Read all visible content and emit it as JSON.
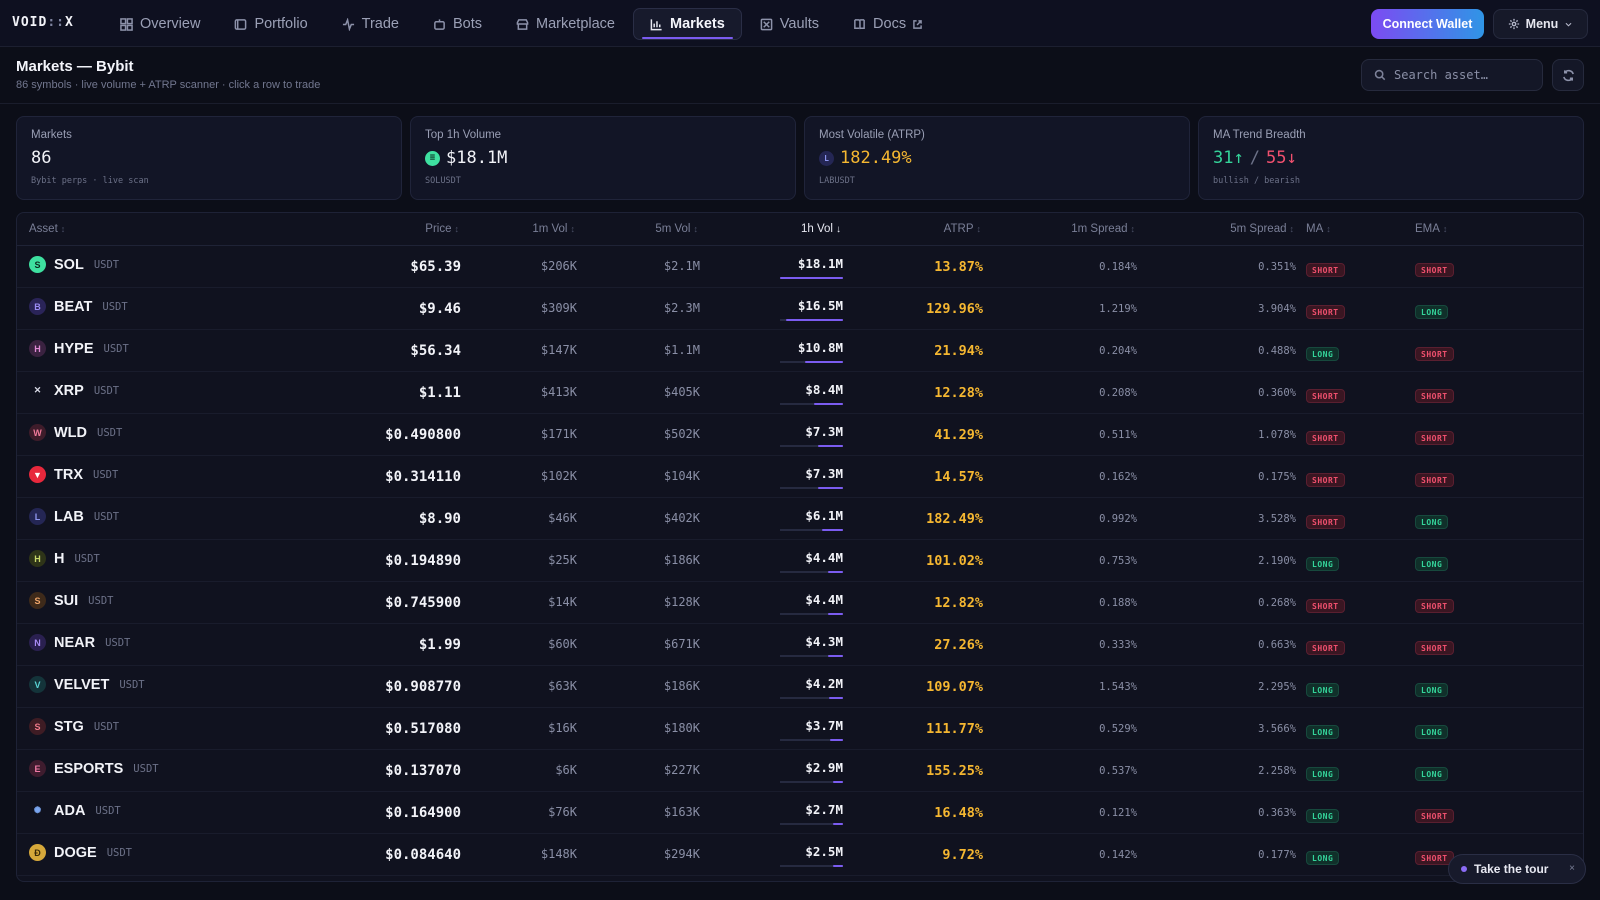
{
  "nav": {
    "logo_a": "VOID",
    "logo_sep": "::",
    "logo_b": "X",
    "tabs": [
      {
        "label": "Overview",
        "icon": "grid-icon"
      },
      {
        "label": "Portfolio",
        "icon": "wallet-icon"
      },
      {
        "label": "Trade",
        "icon": "activity-icon"
      },
      {
        "label": "Bots",
        "icon": "bot-icon"
      },
      {
        "label": "Marketplace",
        "icon": "store-icon"
      },
      {
        "label": "Markets",
        "icon": "bar-chart-icon",
        "active": true
      },
      {
        "label": "Vaults",
        "icon": "vault-icon"
      },
      {
        "label": "Docs",
        "icon": "book-icon",
        "external": true
      }
    ],
    "connect_label": "Connect Wallet",
    "menu_label": "Menu"
  },
  "header": {
    "title": "Markets — Bybit",
    "subtitle": "86 symbols · live volume + ATRP scanner · click a row to trade",
    "search_placeholder": "Search asset…"
  },
  "cards": [
    {
      "label": "Markets",
      "value": "86",
      "note": "Bybit perps · live scan"
    },
    {
      "label": "Top 1h Volume",
      "value": "$18.1M",
      "note": "SOLUSDT",
      "icon": "sol-icon"
    },
    {
      "label": "Most Volatile (ATRP)",
      "value": "182.49%",
      "note": "LABUSDT",
      "icon_letter": "L"
    },
    {
      "label": "MA Trend Breadth",
      "bull": "31↑",
      "slash": "/",
      "bear": "55↓",
      "note": "bullish / bearish"
    }
  ],
  "colors": {
    "accent": "#7b5cf0",
    "long": "#34d399",
    "short": "#f0506e",
    "atrp": "#f5b731"
  },
  "table": {
    "columns": [
      "Asset",
      "Price",
      "1m Vol",
      "5m Vol",
      "1h Vol",
      "ATRP",
      "1m Spread",
      "5m Spread",
      "MA",
      "EMA"
    ],
    "sort_arrow": "↕",
    "sorted_arrow": "↓",
    "sorted_column": "1h Vol",
    "rows": [
      {
        "sym": "SOL",
        "quote": "USDT",
        "price": "$65.39",
        "v1": "$206K",
        "v5": "$2.1M",
        "vh": "$18.1M",
        "vh_frac": 1.0,
        "atrp": "13.87%",
        "s1": "0.184%",
        "s5": "0.351%",
        "ma": "SHORT",
        "ema": "SHORT",
        "icon": "S",
        "ic_bg": "#3ee0a0",
        "ic_fg": "#0c2a20"
      },
      {
        "sym": "BEAT",
        "quote": "USDT",
        "price": "$9.46",
        "v1": "$309K",
        "v5": "$2.3M",
        "vh": "$16.5M",
        "vh_frac": 0.91,
        "atrp": "129.96%",
        "s1": "1.219%",
        "s5": "3.904%",
        "ma": "SHORT",
        "ema": "LONG",
        "icon": "B",
        "ic_bg": "#2a2458",
        "ic_fg": "#9b8cf5"
      },
      {
        "sym": "HYPE",
        "quote": "USDT",
        "price": "$56.34",
        "v1": "$147K",
        "v5": "$1.1M",
        "vh": "$10.8M",
        "vh_frac": 0.6,
        "atrp": "21.94%",
        "s1": "0.204%",
        "s5": "0.488%",
        "ma": "LONG",
        "ema": "SHORT",
        "icon": "H",
        "ic_bg": "#3a2240",
        "ic_fg": "#e08ad6"
      },
      {
        "sym": "XRP",
        "quote": "USDT",
        "price": "$1.11",
        "v1": "$413K",
        "v5": "$405K",
        "vh": "$8.4M",
        "vh_frac": 0.46,
        "atrp": "12.28%",
        "s1": "0.208%",
        "s5": "0.360%",
        "ma": "SHORT",
        "ema": "SHORT",
        "icon": "✕",
        "ic_bg": "#10121f",
        "ic_fg": "#d8dae6"
      },
      {
        "sym": "WLD",
        "quote": "USDT",
        "price": "$0.490800",
        "v1": "$171K",
        "v5": "$502K",
        "vh": "$7.3M",
        "vh_frac": 0.4,
        "atrp": "41.29%",
        "s1": "0.511%",
        "s5": "1.078%",
        "ma": "SHORT",
        "ema": "SHORT",
        "icon": "W",
        "ic_bg": "#3e1c2a",
        "ic_fg": "#f07a9a"
      },
      {
        "sym": "TRX",
        "quote": "USDT",
        "price": "$0.314110",
        "v1": "$102K",
        "v5": "$104K",
        "vh": "$7.3M",
        "vh_frac": 0.4,
        "atrp": "14.57%",
        "s1": "0.162%",
        "s5": "0.175%",
        "ma": "SHORT",
        "ema": "SHORT",
        "icon": "▼",
        "ic_bg": "#e8283c",
        "ic_fg": "#ffffff"
      },
      {
        "sym": "LAB",
        "quote": "USDT",
        "price": "$8.90",
        "v1": "$46K",
        "v5": "$402K",
        "vh": "$6.1M",
        "vh_frac": 0.34,
        "atrp": "182.49%",
        "s1": "0.992%",
        "s5": "3.528%",
        "ma": "SHORT",
        "ema": "LONG",
        "icon": "L",
        "ic_bg": "#242654",
        "ic_fg": "#8e96f0"
      },
      {
        "sym": "H",
        "quote": "USDT",
        "price": "$0.194890",
        "v1": "$25K",
        "v5": "$186K",
        "vh": "$4.4M",
        "vh_frac": 0.24,
        "atrp": "101.02%",
        "s1": "0.753%",
        "s5": "2.190%",
        "ma": "LONG",
        "ema": "LONG",
        "icon": "H",
        "ic_bg": "#2e3418",
        "ic_fg": "#c8d86a"
      },
      {
        "sym": "SUI",
        "quote": "USDT",
        "price": "$0.745900",
        "v1": "$14K",
        "v5": "$128K",
        "vh": "$4.4M",
        "vh_frac": 0.24,
        "atrp": "12.82%",
        "s1": "0.188%",
        "s5": "0.268%",
        "ma": "SHORT",
        "ema": "SHORT",
        "icon": "S",
        "ic_bg": "#3e2a1a",
        "ic_fg": "#f0a66a"
      },
      {
        "sym": "NEAR",
        "quote": "USDT",
        "price": "$1.99",
        "v1": "$60K",
        "v5": "$671K",
        "vh": "$4.3M",
        "vh_frac": 0.24,
        "atrp": "27.26%",
        "s1": "0.333%",
        "s5": "0.663%",
        "ma": "SHORT",
        "ema": "SHORT",
        "icon": "N",
        "ic_bg": "#2a2050",
        "ic_fg": "#a88cf5"
      },
      {
        "sym": "VELVET",
        "quote": "USDT",
        "price": "$0.908770",
        "v1": "$63K",
        "v5": "$186K",
        "vh": "$4.2M",
        "vh_frac": 0.23,
        "atrp": "109.07%",
        "s1": "1.543%",
        "s5": "2.295%",
        "ma": "LONG",
        "ema": "LONG",
        "icon": "V",
        "ic_bg": "#14343a",
        "ic_fg": "#5ad6d6"
      },
      {
        "sym": "STG",
        "quote": "USDT",
        "price": "$0.517080",
        "v1": "$16K",
        "v5": "$180K",
        "vh": "$3.7M",
        "vh_frac": 0.2,
        "atrp": "111.77%",
        "s1": "0.529%",
        "s5": "3.566%",
        "ma": "LONG",
        "ema": "LONG",
        "icon": "S",
        "ic_bg": "#3e1c24",
        "ic_fg": "#f07a8a"
      },
      {
        "sym": "ESPORTS",
        "quote": "USDT",
        "price": "$0.137070",
        "v1": "$6K",
        "v5": "$227K",
        "vh": "$2.9M",
        "vh_frac": 0.16,
        "atrp": "155.25%",
        "s1": "0.537%",
        "s5": "2.258%",
        "ma": "LONG",
        "ema": "LONG",
        "icon": "E",
        "ic_bg": "#3e1c2e",
        "ic_fg": "#f07aa6"
      },
      {
        "sym": "ADA",
        "quote": "USDT",
        "price": "$0.164900",
        "v1": "$76K",
        "v5": "$163K",
        "vh": "$2.7M",
        "vh_frac": 0.15,
        "atrp": "16.48%",
        "s1": "0.121%",
        "s5": "0.363%",
        "ma": "LONG",
        "ema": "SHORT",
        "icon": "✺",
        "ic_bg": "#10121f",
        "ic_fg": "#7aa6f0"
      },
      {
        "sym": "DOGE",
        "quote": "USDT",
        "price": "$0.084640",
        "v1": "$148K",
        "v5": "$294K",
        "vh": "$2.5M",
        "vh_frac": 0.14,
        "atrp": "9.72%",
        "s1": "0.142%",
        "s5": "0.177%",
        "ma": "LONG",
        "ema": "SHORT",
        "icon": "Ð",
        "ic_bg": "#d6a83a",
        "ic_fg": "#3a2a08"
      }
    ]
  },
  "tour": {
    "label": "Take the tour",
    "close": "×"
  }
}
